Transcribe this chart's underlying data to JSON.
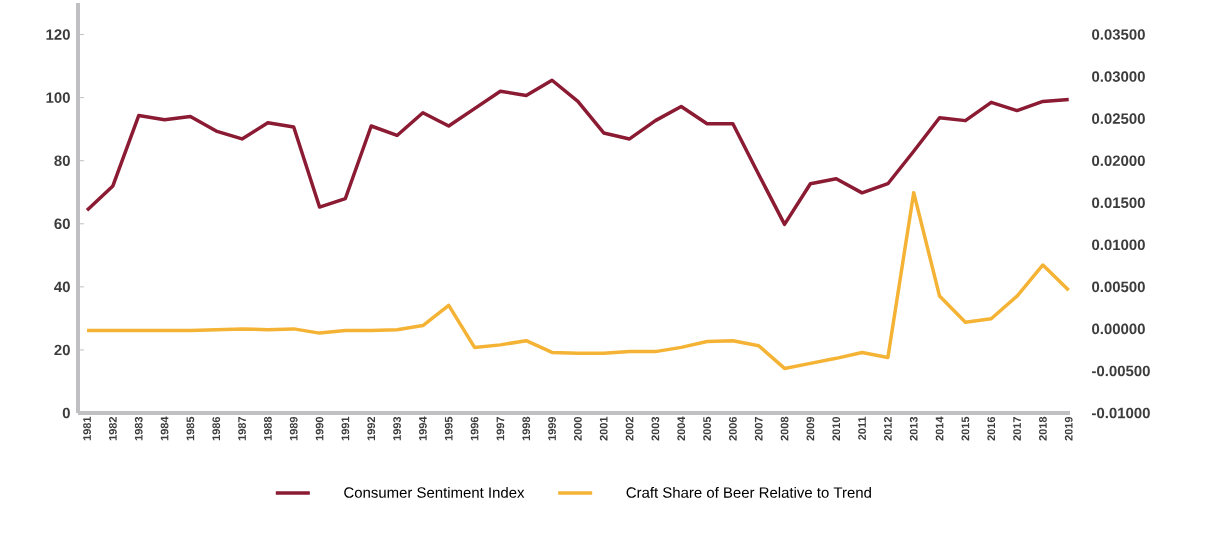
{
  "chart_data": {
    "type": "line",
    "categories": [
      "1981",
      "1982",
      "1983",
      "1984",
      "1985",
      "1986",
      "1987",
      "1988",
      "1989",
      "1990",
      "1991",
      "1992",
      "1993",
      "1994",
      "1995",
      "1996",
      "1997",
      "1998",
      "1999",
      "2000",
      "2001",
      "2002",
      "2003",
      "2004",
      "2005",
      "2006",
      "2007",
      "2008",
      "2009",
      "2010",
      "2011",
      "2012",
      "2013",
      "2014",
      "2015",
      "2016",
      "2017",
      "2018",
      "2019"
    ],
    "series": [
      {
        "name": "Consumer Sentiment Index",
        "color": "#8b1a33",
        "values": [
          64.3,
          72,
          94.3,
          93,
          94,
          89.4,
          86.9,
          92,
          90.7,
          65.3,
          68,
          91,
          88,
          95.2,
          91,
          96.5,
          102,
          100.7,
          105.5,
          98.8,
          88.8,
          86.9,
          92.7,
          97.2,
          91.7,
          91.7,
          75.6,
          59.8,
          72.7,
          74.3,
          69.8,
          72.7,
          83,
          93.6,
          92.7,
          98.5,
          95.9,
          98.8,
          99.4
        ]
      },
      {
        "name": "Craft Share of Beer Relative to Trend",
        "color": "#f5b335",
        "axis": "y2",
        "values": [
          -0.0002,
          -0.0002,
          -0.0002,
          -0.0002,
          -0.0002,
          -0.0001,
          0.0,
          -0.0001,
          0.0,
          -0.0005,
          -0.0002,
          -0.0002,
          -0.0001,
          0.0004,
          0.0028,
          -0.0022,
          -0.0019,
          -0.0014,
          -0.0028,
          -0.0029,
          -0.0029,
          -0.0027,
          -0.0027,
          -0.0022,
          -0.0015,
          -0.0014,
          -0.002,
          -0.0047,
          -0.0041,
          -0.0035,
          -0.0028,
          -0.0034,
          0.0162,
          0.0039,
          0.0008,
          0.0012,
          0.0039,
          0.0076,
          0.0046
        ]
      }
    ],
    "ylim": [
      0,
      130
    ],
    "yticks": [
      0,
      20,
      40,
      60,
      80,
      100,
      120
    ],
    "y2lim": [
      -0.01,
      0.03875
    ],
    "y2ticks": [
      {
        "value": -0.01,
        "label": "-0.01000"
      },
      {
        "value": -0.005,
        "label": "-0.00500"
      },
      {
        "value": 0,
        "label": "0.00000"
      },
      {
        "value": 0.005,
        "label": "0.00500"
      },
      {
        "value": 0.01,
        "label": "0.01000"
      },
      {
        "value": 0.015,
        "label": "0.01500"
      },
      {
        "value": 0.02,
        "label": "0.02000"
      },
      {
        "value": 0.025,
        "label": "0.02500"
      },
      {
        "value": 0.03,
        "label": "0.03000"
      },
      {
        "value": 0.035,
        "label": "0.03500"
      }
    ],
    "legend": "bottom",
    "grid": false,
    "marker": "none",
    "line_style": "solid"
  }
}
